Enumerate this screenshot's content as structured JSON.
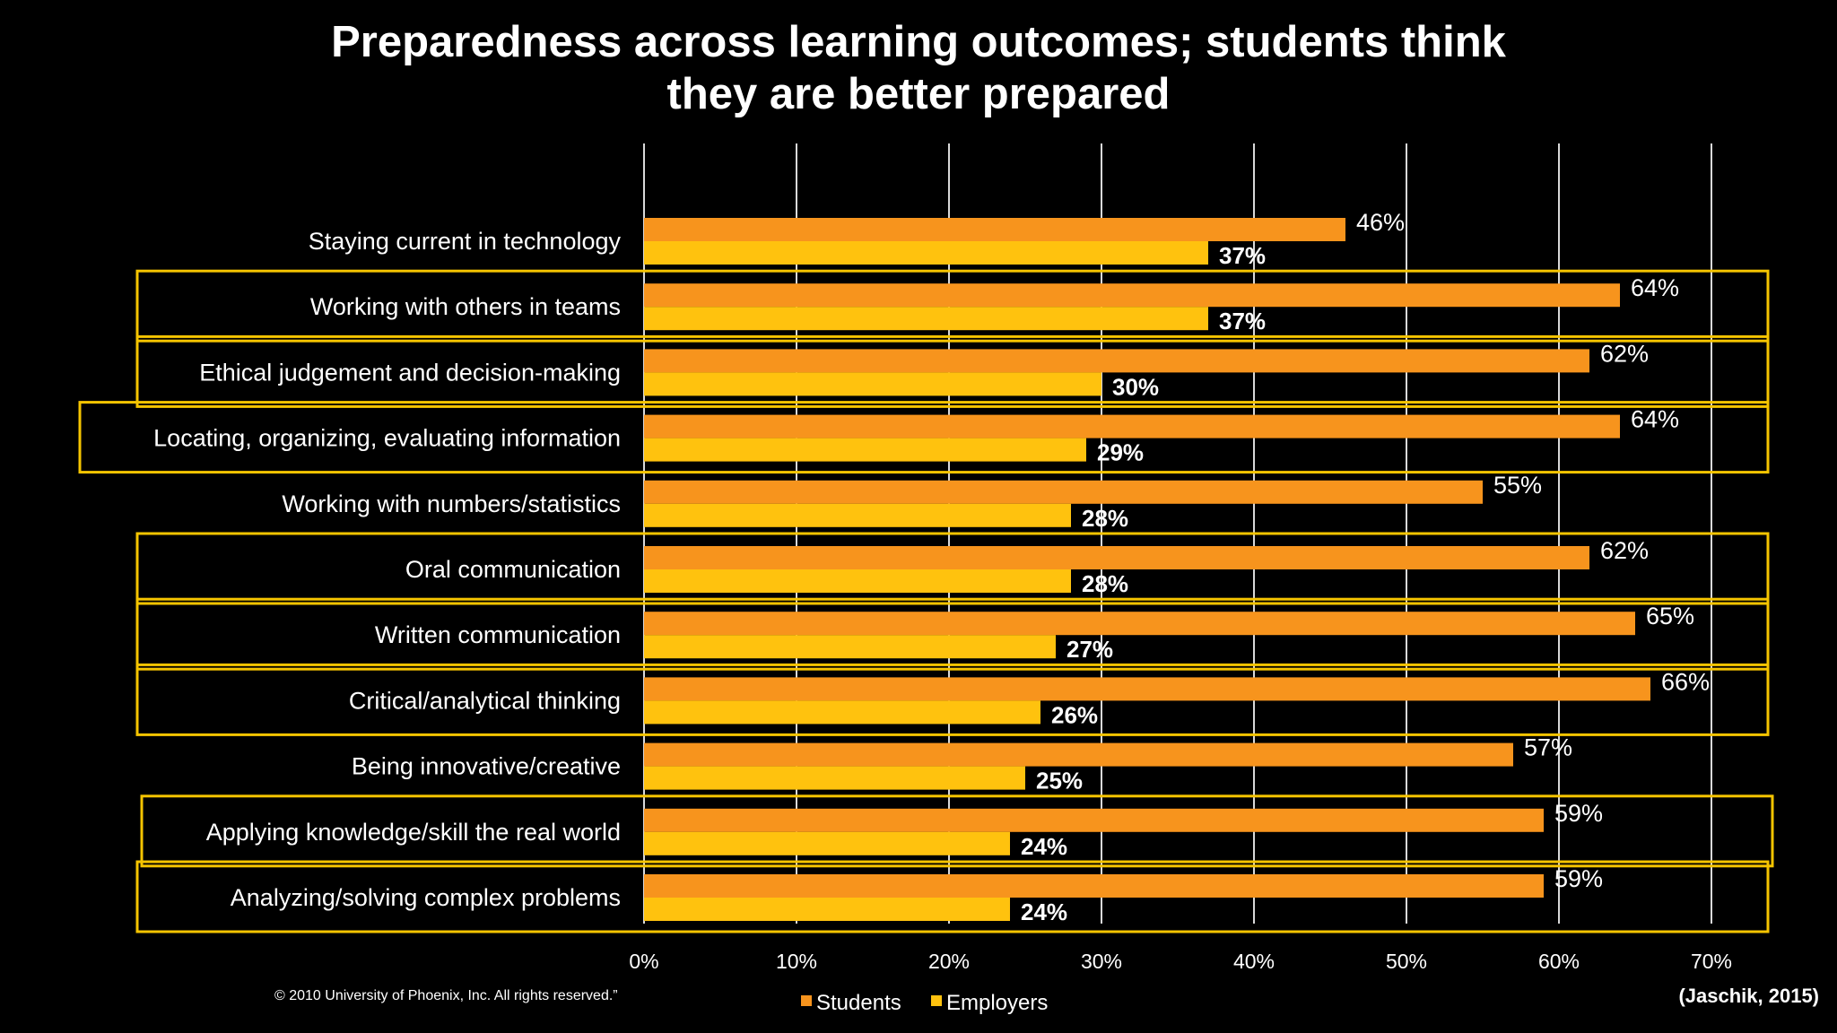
{
  "title": {
    "line1": "Preparedness across learning outcomes; students think",
    "line2": "they are better prepared"
  },
  "footer": {
    "copyright": "© 2010 University of Phoenix, Inc. All rights reserved.”",
    "citation": "(Jaschik, 2015)"
  },
  "colors": {
    "students": "#F7941D",
    "employers": "#FFC20E",
    "highlight_box": "#F5C400",
    "gridline": "#D9D9D9"
  },
  "chart_data": {
    "type": "bar",
    "orientation": "horizontal",
    "title": "Preparedness across learning outcomes; students think they are better prepared",
    "categories": [
      "Staying current in technology",
      "Working with others in teams",
      "Ethical judgement and decision-making",
      "Locating, organizing, evaluating information",
      "Working with numbers/statistics",
      "Oral communication",
      "Written communication",
      "Critical/analytical thinking",
      "Being innovative/creative",
      "Applying knowledge/skill the real world",
      "Analyzing/solving complex problems"
    ],
    "highlighted": [
      false,
      true,
      true,
      true,
      false,
      true,
      true,
      true,
      false,
      true,
      true
    ],
    "series": [
      {
        "name": "Students",
        "values": [
          46,
          64,
          62,
          64,
          55,
          62,
          65,
          66,
          57,
          59,
          59
        ],
        "labels": [
          "46%",
          "64%",
          "62%",
          "64%",
          "55%",
          "62%",
          "65%",
          "66%",
          "57%",
          "59%",
          "59%"
        ]
      },
      {
        "name": "Employers",
        "values": [
          37,
          37,
          30,
          29,
          28,
          28,
          27,
          26,
          25,
          24,
          24
        ],
        "labels": [
          "37%",
          "37%",
          "30%",
          "29%",
          "28%",
          "28%",
          "27%",
          "26%",
          "25%",
          "24%",
          "24%"
        ]
      }
    ],
    "xlim": [
      0,
      70
    ],
    "xticks": [
      0,
      10,
      20,
      30,
      40,
      50,
      60,
      70
    ],
    "xtick_labels": [
      "0%",
      "10%",
      "20%",
      "30%",
      "40%",
      "50%",
      "60%",
      "70%"
    ],
    "grid": true,
    "legend_position": "bottom"
  }
}
